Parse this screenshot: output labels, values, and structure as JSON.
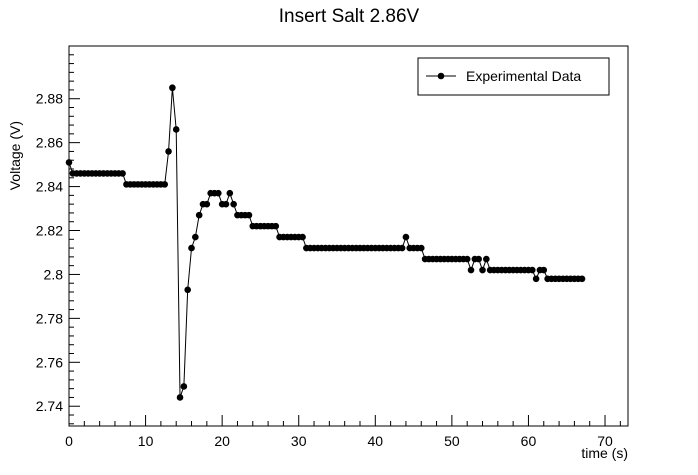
{
  "chart_data": {
    "type": "line",
    "title": "Insert Salt 2.86V",
    "xlabel": "time (s)",
    "ylabel": "Voltage (V)",
    "xlim": [
      0,
      73
    ],
    "ylim": [
      2.731,
      2.904
    ],
    "x_ticks": [
      0,
      10,
      20,
      30,
      40,
      50,
      60,
      70
    ],
    "y_ticks": [
      2.74,
      2.76,
      2.78,
      2.8,
      2.82,
      2.84,
      2.86,
      2.88
    ],
    "x_tick_labels": [
      "0",
      "10",
      "20",
      "30",
      "40",
      "50",
      "60",
      "70"
    ],
    "y_tick_labels": [
      "2.74",
      "2.76",
      "2.78",
      "2.8",
      "2.82",
      "2.84",
      "2.86",
      "2.88"
    ],
    "legend": {
      "position": "top-right",
      "entries": [
        "Experimental Data"
      ]
    },
    "grid": false,
    "series": [
      {
        "name": "Experimental Data",
        "color": "#000000",
        "points": [
          [
            0,
            2.851
          ],
          [
            0.5,
            2.846
          ],
          [
            1,
            2.846
          ],
          [
            1.5,
            2.846
          ],
          [
            2,
            2.846
          ],
          [
            2.5,
            2.846
          ],
          [
            3,
            2.846
          ],
          [
            3.5,
            2.846
          ],
          [
            4,
            2.846
          ],
          [
            4.5,
            2.846
          ],
          [
            5,
            2.846
          ],
          [
            5.5,
            2.846
          ],
          [
            6,
            2.846
          ],
          [
            6.5,
            2.846
          ],
          [
            7,
            2.846
          ],
          [
            7.5,
            2.841
          ],
          [
            8,
            2.841
          ],
          [
            8.5,
            2.841
          ],
          [
            9,
            2.841
          ],
          [
            9.5,
            2.841
          ],
          [
            10,
            2.841
          ],
          [
            10.5,
            2.841
          ],
          [
            11,
            2.841
          ],
          [
            11.5,
            2.841
          ],
          [
            12,
            2.841
          ],
          [
            12.5,
            2.841
          ],
          [
            13,
            2.856
          ],
          [
            13.5,
            2.885
          ],
          [
            14,
            2.866
          ],
          [
            14.5,
            2.744
          ],
          [
            15,
            2.749
          ],
          [
            15.5,
            2.793
          ],
          [
            16,
            2.812
          ],
          [
            16.5,
            2.817
          ],
          [
            17,
            2.827
          ],
          [
            17.5,
            2.832
          ],
          [
            18,
            2.832
          ],
          [
            18.5,
            2.837
          ],
          [
            19,
            2.837
          ],
          [
            19.5,
            2.837
          ],
          [
            20,
            2.832
          ],
          [
            20.5,
            2.832
          ],
          [
            21,
            2.837
          ],
          [
            21.5,
            2.832
          ],
          [
            22,
            2.827
          ],
          [
            22.5,
            2.827
          ],
          [
            23,
            2.827
          ],
          [
            23.5,
            2.827
          ],
          [
            24,
            2.822
          ],
          [
            24.5,
            2.822
          ],
          [
            25,
            2.822
          ],
          [
            25.5,
            2.822
          ],
          [
            26,
            2.822
          ],
          [
            26.5,
            2.822
          ],
          [
            27,
            2.822
          ],
          [
            27.5,
            2.817
          ],
          [
            28,
            2.817
          ],
          [
            28.5,
            2.817
          ],
          [
            29,
            2.817
          ],
          [
            29.5,
            2.817
          ],
          [
            30,
            2.817
          ],
          [
            30.5,
            2.817
          ],
          [
            31,
            2.812
          ],
          [
            31.5,
            2.812
          ],
          [
            32,
            2.812
          ],
          [
            32.5,
            2.812
          ],
          [
            33,
            2.812
          ],
          [
            33.5,
            2.812
          ],
          [
            34,
            2.812
          ],
          [
            34.5,
            2.812
          ],
          [
            35,
            2.812
          ],
          [
            35.5,
            2.812
          ],
          [
            36,
            2.812
          ],
          [
            36.5,
            2.812
          ],
          [
            37,
            2.812
          ],
          [
            37.5,
            2.812
          ],
          [
            38,
            2.812
          ],
          [
            38.5,
            2.812
          ],
          [
            39,
            2.812
          ],
          [
            39.5,
            2.812
          ],
          [
            40,
            2.812
          ],
          [
            40.5,
            2.812
          ],
          [
            41,
            2.812
          ],
          [
            41.5,
            2.812
          ],
          [
            42,
            2.812
          ],
          [
            42.5,
            2.812
          ],
          [
            43,
            2.812
          ],
          [
            43.5,
            2.812
          ],
          [
            44,
            2.817
          ],
          [
            44.5,
            2.812
          ],
          [
            45,
            2.812
          ],
          [
            45.5,
            2.812
          ],
          [
            46,
            2.812
          ],
          [
            46.5,
            2.807
          ],
          [
            47,
            2.807
          ],
          [
            47.5,
            2.807
          ],
          [
            48,
            2.807
          ],
          [
            48.5,
            2.807
          ],
          [
            49,
            2.807
          ],
          [
            49.5,
            2.807
          ],
          [
            50,
            2.807
          ],
          [
            50.5,
            2.807
          ],
          [
            51,
            2.807
          ],
          [
            51.5,
            2.807
          ],
          [
            52,
            2.807
          ],
          [
            52.5,
            2.802
          ],
          [
            53,
            2.807
          ],
          [
            53.5,
            2.807
          ],
          [
            54,
            2.802
          ],
          [
            54.5,
            2.807
          ],
          [
            55,
            2.802
          ],
          [
            55.5,
            2.802
          ],
          [
            56,
            2.802
          ],
          [
            56.5,
            2.802
          ],
          [
            57,
            2.802
          ],
          [
            57.5,
            2.802
          ],
          [
            58,
            2.802
          ],
          [
            58.5,
            2.802
          ],
          [
            59,
            2.802
          ],
          [
            59.5,
            2.802
          ],
          [
            60,
            2.802
          ],
          [
            60.5,
            2.802
          ],
          [
            61,
            2.798
          ],
          [
            61.5,
            2.802
          ],
          [
            62,
            2.802
          ],
          [
            62.5,
            2.798
          ],
          [
            63,
            2.798
          ],
          [
            63.5,
            2.798
          ],
          [
            64,
            2.798
          ],
          [
            64.5,
            2.798
          ],
          [
            65,
            2.798
          ],
          [
            65.5,
            2.798
          ],
          [
            66,
            2.798
          ],
          [
            66.5,
            2.798
          ],
          [
            67,
            2.798
          ]
        ]
      }
    ]
  }
}
